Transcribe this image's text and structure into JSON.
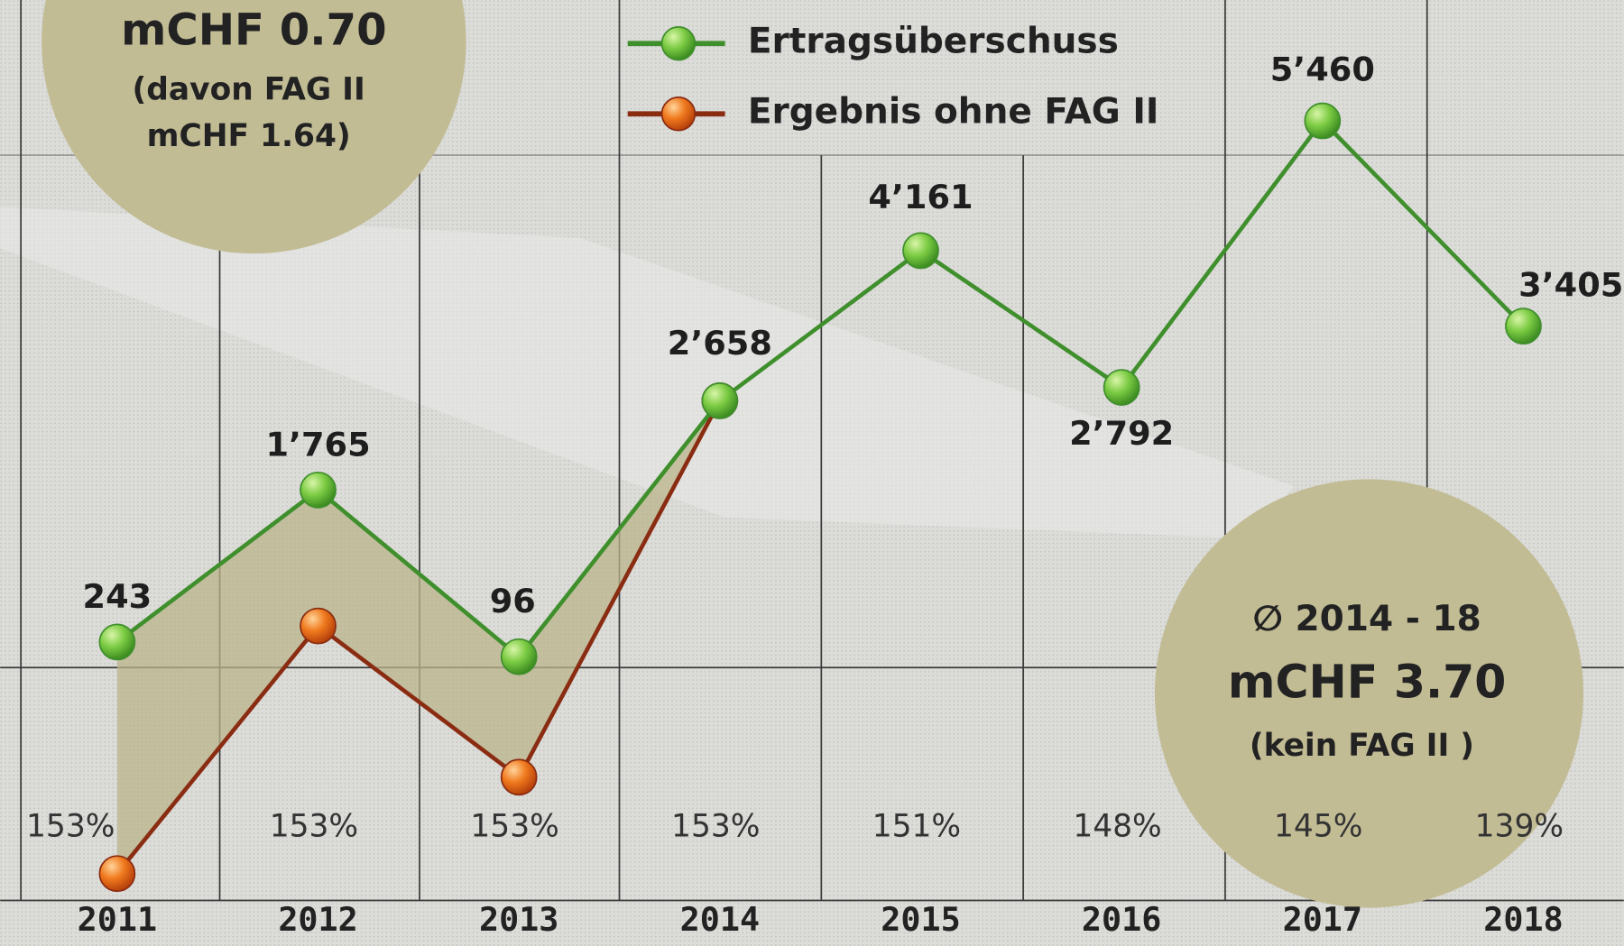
{
  "chart_data": {
    "type": "line",
    "categories": [
      "2011",
      "2012",
      "2013",
      "2014",
      "2015",
      "2016",
      "2017",
      "2018"
    ],
    "series": [
      {
        "name": "Ertragsüberschuss",
        "color": "#3f8f2c",
        "values": [
          243,
          1765,
          96,
          2658,
          4161,
          2792,
          5460,
          3405
        ],
        "value_labels": [
          "243",
          "1’765",
          "96",
          "2’658",
          "4’161",
          "2’792",
          "5’460",
          "3’405"
        ]
      },
      {
        "name": "Ergebnis ohne FAG II",
        "color": "#8a2c12",
        "values": [
          -2075,
          404,
          -1110,
          2658,
          null,
          null,
          null,
          null
        ]
      }
    ],
    "percent_labels": [
      "153%",
      "153%",
      "153%",
      "153%",
      "151%",
      "148%",
      "145%",
      "139%"
    ],
    "ylim": [
      -2800,
      6670
    ],
    "annotations": [
      {
        "lines": [
          "mCHF 0.70",
          "(davon FAG II",
          "mCHF 1.64)"
        ]
      },
      {
        "lines": [
          "∅ 2014 - 18",
          "mCHF 3.70",
          "(kein FAG II )"
        ]
      }
    ]
  }
}
